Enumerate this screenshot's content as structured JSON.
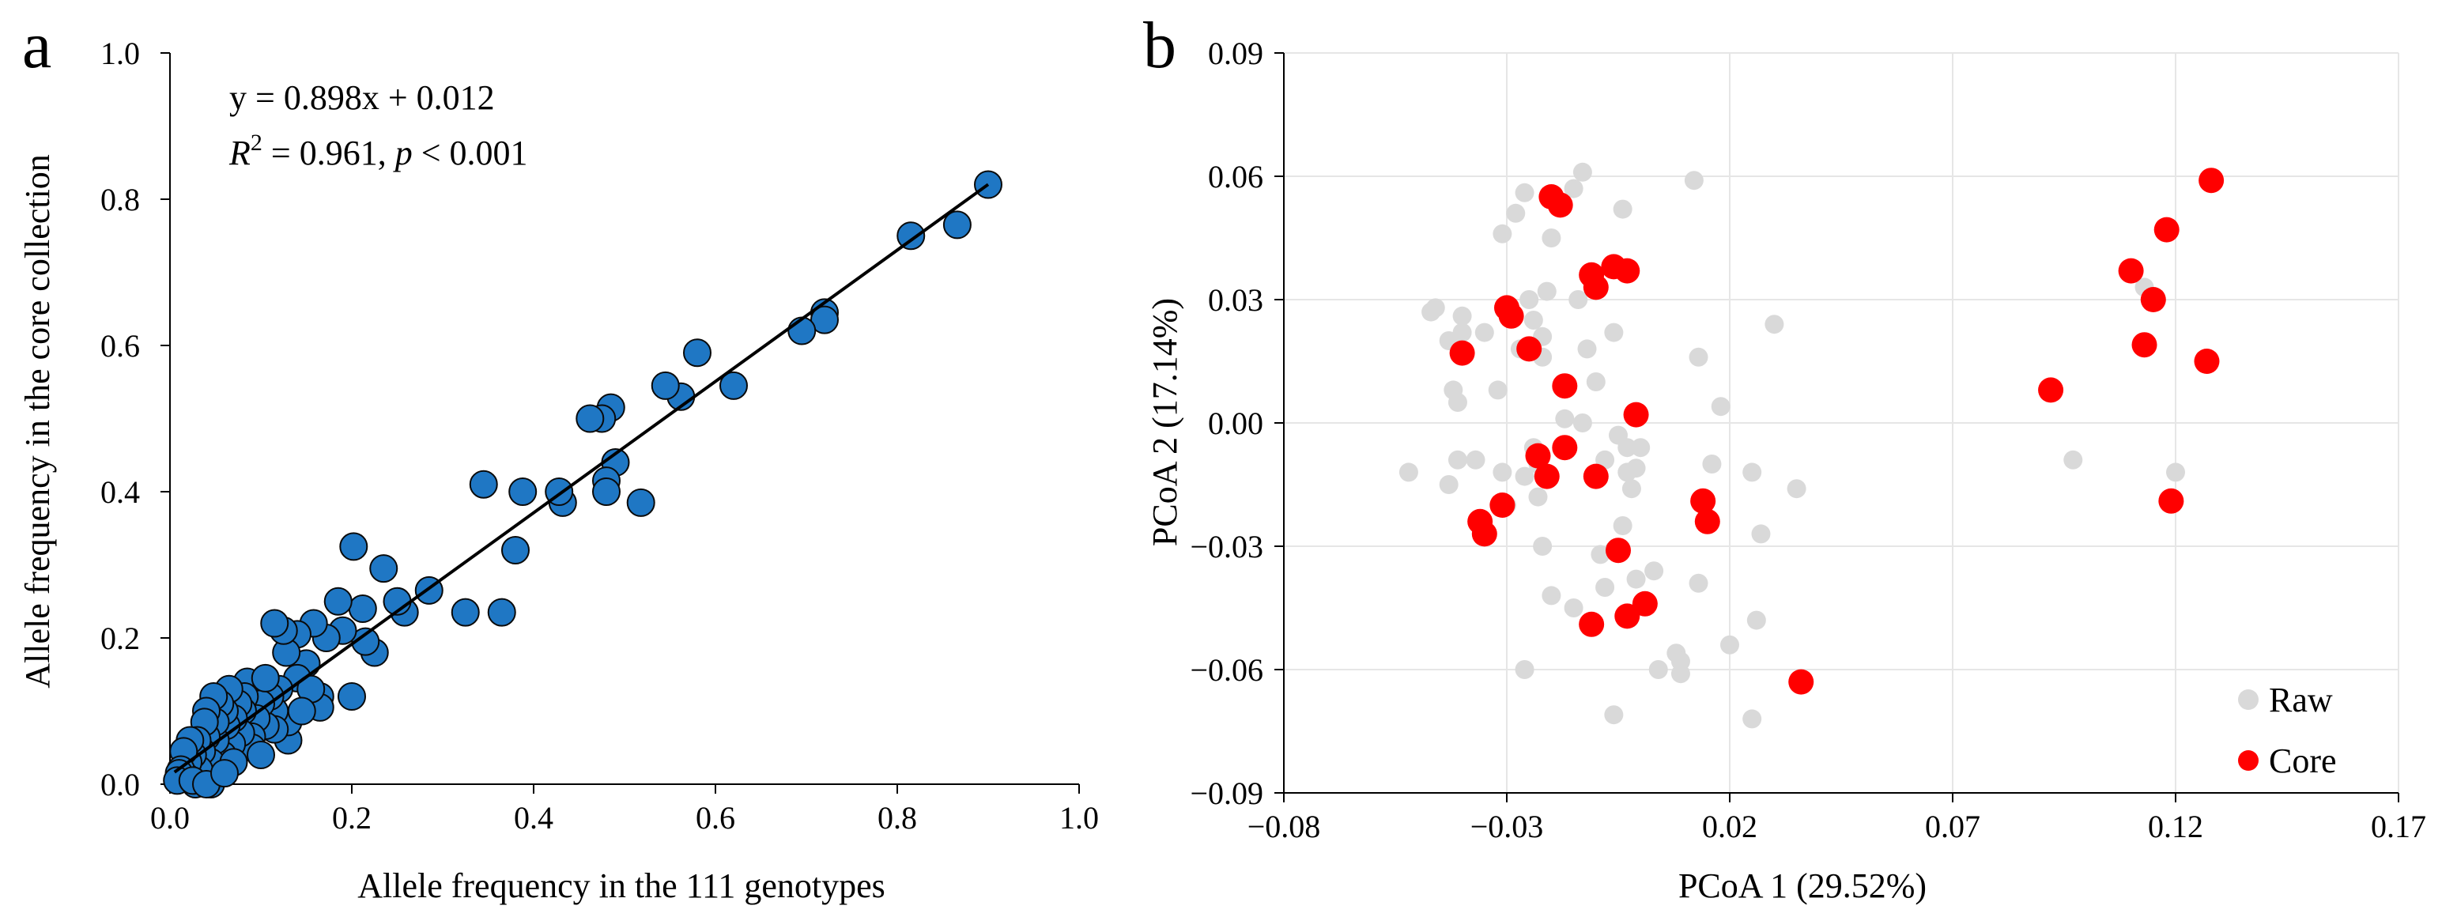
{
  "chart_data": [
    {
      "panel_label": "a",
      "type": "scatter",
      "xlabel": "Allele frequency in the 111 genotypes",
      "ylabel": "Allele frequency in the core collection",
      "xlim": [
        0,
        1.0
      ],
      "ylim": [
        0,
        1.0
      ],
      "xticks": [
        "0.0",
        "0.2",
        "0.4",
        "0.6",
        "0.8",
        "1.0"
      ],
      "yticks": [
        "0.0",
        "0.2",
        "0.4",
        "0.6",
        "0.8",
        "1.0"
      ],
      "grid": false,
      "annotation": {
        "equation": "y = 0.898x + 0.012",
        "r_prefix": "R",
        "r_sup": "2",
        "r_value": " = 0.961, ",
        "p_symbol": "p",
        "p_value": " < 0.001"
      },
      "regression": {
        "slope": 0.898,
        "intercept": 0.012,
        "x_range": [
          0.005,
          0.9
        ]
      },
      "marker_color": "#1f77c4",
      "marker_edge": "#0a0a0a",
      "points": [
        [
          0.9,
          0.82
        ],
        [
          0.866,
          0.765
        ],
        [
          0.815,
          0.75
        ],
        [
          0.72,
          0.645
        ],
        [
          0.72,
          0.635
        ],
        [
          0.695,
          0.62
        ],
        [
          0.62,
          0.545
        ],
        [
          0.58,
          0.59
        ],
        [
          0.562,
          0.53
        ],
        [
          0.545,
          0.545
        ],
        [
          0.518,
          0.385
        ],
        [
          0.49,
          0.44
        ],
        [
          0.485,
          0.515
        ],
        [
          0.475,
          0.5
        ],
        [
          0.462,
          0.5
        ],
        [
          0.48,
          0.415
        ],
        [
          0.48,
          0.4
        ],
        [
          0.432,
          0.385
        ],
        [
          0.428,
          0.4
        ],
        [
          0.388,
          0.4
        ],
        [
          0.38,
          0.32
        ],
        [
          0.345,
          0.41
        ],
        [
          0.365,
          0.235
        ],
        [
          0.325,
          0.235
        ],
        [
          0.285,
          0.265
        ],
        [
          0.258,
          0.235
        ],
        [
          0.25,
          0.25
        ],
        [
          0.235,
          0.295
        ],
        [
          0.202,
          0.325
        ],
        [
          0.225,
          0.18
        ],
        [
          0.215,
          0.195
        ],
        [
          0.212,
          0.24
        ],
        [
          0.2,
          0.12
        ],
        [
          0.185,
          0.25
        ],
        [
          0.19,
          0.21
        ],
        [
          0.172,
          0.2
        ],
        [
          0.165,
          0.12
        ],
        [
          0.165,
          0.105
        ],
        [
          0.158,
          0.22
        ],
        [
          0.15,
          0.165
        ],
        [
          0.14,
          0.145
        ],
        [
          0.14,
          0.205
        ],
        [
          0.128,
          0.18
        ],
        [
          0.125,
          0.21
        ],
        [
          0.115,
          0.22
        ],
        [
          0.13,
          0.06
        ],
        [
          0.13,
          0.085
        ],
        [
          0.12,
          0.13
        ],
        [
          0.115,
          0.1
        ],
        [
          0.115,
          0.075
        ],
        [
          0.11,
          0.12
        ],
        [
          0.105,
          0.08
        ],
        [
          0.1,
          0.11
        ],
        [
          0.095,
          0.09
        ],
        [
          0.09,
          0.065
        ],
        [
          0.09,
          0.05
        ],
        [
          0.085,
          0.14
        ],
        [
          0.082,
          0.12
        ],
        [
          0.08,
          0.1
        ],
        [
          0.078,
          0.07
        ],
        [
          0.075,
          0.11
        ],
        [
          0.07,
          0.09
        ],
        [
          0.068,
          0.055
        ],
        [
          0.065,
          0.13
        ],
        [
          0.062,
          0.08
        ],
        [
          0.06,
          0.1
        ],
        [
          0.058,
          0.04
        ],
        [
          0.055,
          0.11
        ],
        [
          0.05,
          0.06
        ],
        [
          0.05,
          0.085
        ],
        [
          0.048,
          0.12
        ],
        [
          0.045,
          0.0
        ],
        [
          0.045,
          0.03
        ],
        [
          0.04,
          0.1
        ],
        [
          0.04,
          0.065
        ],
        [
          0.038,
          0.085
        ],
        [
          0.035,
          0.045
        ],
        [
          0.032,
          0.02
        ],
        [
          0.03,
          0.06
        ],
        [
          0.028,
          0.0
        ],
        [
          0.025,
          0.04
        ],
        [
          0.022,
          0.06
        ],
        [
          0.02,
          0.03
        ],
        [
          0.018,
          0.01
        ],
        [
          0.015,
          0.045
        ],
        [
          0.012,
          0.02
        ],
        [
          0.01,
          0.015
        ],
        [
          0.008,
          0.005
        ],
        [
          0.025,
          0.005
        ],
        [
          0.04,
          0.0
        ],
        [
          0.07,
          0.03
        ],
        [
          0.1,
          0.04
        ],
        [
          0.155,
          0.13
        ],
        [
          0.105,
          0.145
        ],
        [
          0.145,
          0.1
        ],
        [
          0.06,
          0.015
        ]
      ]
    },
    {
      "panel_label": "b",
      "type": "scatter",
      "xlabel": "PCoA 1 (29.52%)",
      "ylabel": "PCoA 2 (17.14%)",
      "xlim": [
        -0.08,
        0.17
      ],
      "ylim": [
        -0.09,
        0.09
      ],
      "xticks": [
        -0.08,
        -0.03,
        0.02,
        0.07,
        0.12,
        0.17
      ],
      "xtick_labels": [
        "−0.08",
        "−0.03",
        "0.02",
        "0.07",
        "0.12",
        "0.17"
      ],
      "yticks": [
        -0.09,
        -0.06,
        -0.03,
        0.0,
        0.03,
        0.06,
        0.09
      ],
      "ytick_labels": [
        "−0.09",
        "−0.06",
        "−0.03",
        "0.00",
        "0.03",
        "0.06",
        "0.09"
      ],
      "grid": true,
      "legend_position": "bottom-right",
      "series": [
        {
          "name": "Raw",
          "color": "#d9d9d9",
          "points": [
            [
              -0.047,
              0.027
            ],
            [
              -0.046,
              0.028
            ],
            [
              -0.043,
              0.02
            ],
            [
              -0.042,
              0.008
            ],
            [
              -0.041,
              0.005
            ],
            [
              -0.04,
              0.026
            ],
            [
              -0.04,
              0.022
            ],
            [
              -0.041,
              -0.009
            ],
            [
              -0.043,
              -0.015
            ],
            [
              -0.037,
              -0.009
            ],
            [
              -0.052,
              -0.012
            ],
            [
              -0.031,
              0.046
            ],
            [
              -0.032,
              0.008
            ],
            [
              -0.028,
              0.051
            ],
            [
              -0.026,
              0.056
            ],
            [
              -0.025,
              0.03
            ],
            [
              -0.024,
              0.025
            ],
            [
              -0.022,
              0.021
            ],
            [
              -0.027,
              0.018
            ],
            [
              -0.021,
              0.032
            ],
            [
              -0.022,
              0.016
            ],
            [
              -0.014,
              0.03
            ],
            [
              -0.012,
              0.018
            ],
            [
              -0.013,
              0.061
            ],
            [
              -0.015,
              0.057
            ],
            [
              -0.004,
              0.052
            ],
            [
              -0.01,
              0.01
            ],
            [
              -0.006,
              0.022
            ],
            [
              -0.013,
              0.0
            ],
            [
              -0.005,
              -0.003
            ],
            [
              -0.003,
              -0.006
            ],
            [
              -0.008,
              -0.009
            ],
            [
              -0.003,
              -0.012
            ],
            [
              -0.002,
              -0.016
            ],
            [
              -0.001,
              -0.011
            ],
            [
              0.0,
              -0.006
            ],
            [
              -0.024,
              -0.006
            ],
            [
              -0.023,
              -0.01
            ],
            [
              -0.026,
              -0.013
            ],
            [
              -0.023,
              -0.018
            ],
            [
              -0.031,
              -0.012
            ],
            [
              -0.03,
              -0.02
            ],
            [
              -0.022,
              -0.03
            ],
            [
              -0.02,
              -0.042
            ],
            [
              -0.015,
              -0.045
            ],
            [
              -0.008,
              -0.04
            ],
            [
              -0.006,
              -0.031
            ],
            [
              -0.004,
              -0.025
            ],
            [
              -0.009,
              -0.032
            ],
            [
              -0.001,
              -0.038
            ],
            [
              0.003,
              -0.036
            ],
            [
              0.008,
              -0.056
            ],
            [
              0.009,
              -0.058
            ],
            [
              0.009,
              -0.061
            ],
            [
              0.004,
              -0.06
            ],
            [
              -0.006,
              -0.071
            ],
            [
              -0.026,
              -0.06
            ],
            [
              0.012,
              0.059
            ],
            [
              0.013,
              0.016
            ],
            [
              0.018,
              0.004
            ],
            [
              0.016,
              -0.01
            ],
            [
              0.025,
              -0.012
            ],
            [
              0.027,
              -0.027
            ],
            [
              0.03,
              0.024
            ],
            [
              0.035,
              -0.016
            ],
            [
              0.013,
              -0.039
            ],
            [
              0.02,
              -0.054
            ],
            [
              0.026,
              -0.048
            ],
            [
              0.025,
              -0.072
            ],
            [
              0.097,
              -0.009
            ],
            [
              0.12,
              -0.012
            ],
            [
              0.113,
              0.033
            ],
            [
              -0.02,
              0.045
            ],
            [
              -0.017,
              0.001
            ],
            [
              -0.035,
              0.022
            ]
          ]
        },
        {
          "name": "Core",
          "color": "#ff0000",
          "points": [
            [
              0.128,
              0.059
            ],
            [
              0.118,
              0.047
            ],
            [
              0.11,
              0.037
            ],
            [
              0.115,
              0.03
            ],
            [
              0.113,
              0.019
            ],
            [
              0.127,
              0.015
            ],
            [
              0.092,
              0.008
            ],
            [
              0.119,
              -0.019
            ],
            [
              -0.02,
              0.055
            ],
            [
              -0.018,
              0.053
            ],
            [
              -0.006,
              0.038
            ],
            [
              -0.003,
              0.037
            ],
            [
              -0.011,
              0.036
            ],
            [
              -0.01,
              0.033
            ],
            [
              -0.03,
              0.028
            ],
            [
              -0.029,
              0.026
            ],
            [
              -0.025,
              0.018
            ],
            [
              -0.04,
              0.017
            ],
            [
              -0.017,
              0.009
            ],
            [
              -0.001,
              0.002
            ],
            [
              -0.023,
              -0.008
            ],
            [
              -0.017,
              -0.006
            ],
            [
              -0.021,
              -0.013
            ],
            [
              -0.01,
              -0.013
            ],
            [
              -0.031,
              -0.02
            ],
            [
              -0.036,
              -0.024
            ],
            [
              -0.035,
              -0.027
            ],
            [
              0.014,
              -0.019
            ],
            [
              0.015,
              -0.024
            ],
            [
              -0.005,
              -0.031
            ],
            [
              0.001,
              -0.044
            ],
            [
              -0.003,
              -0.047
            ],
            [
              -0.011,
              -0.049
            ],
            [
              0.036,
              -0.063
            ]
          ]
        }
      ]
    }
  ]
}
